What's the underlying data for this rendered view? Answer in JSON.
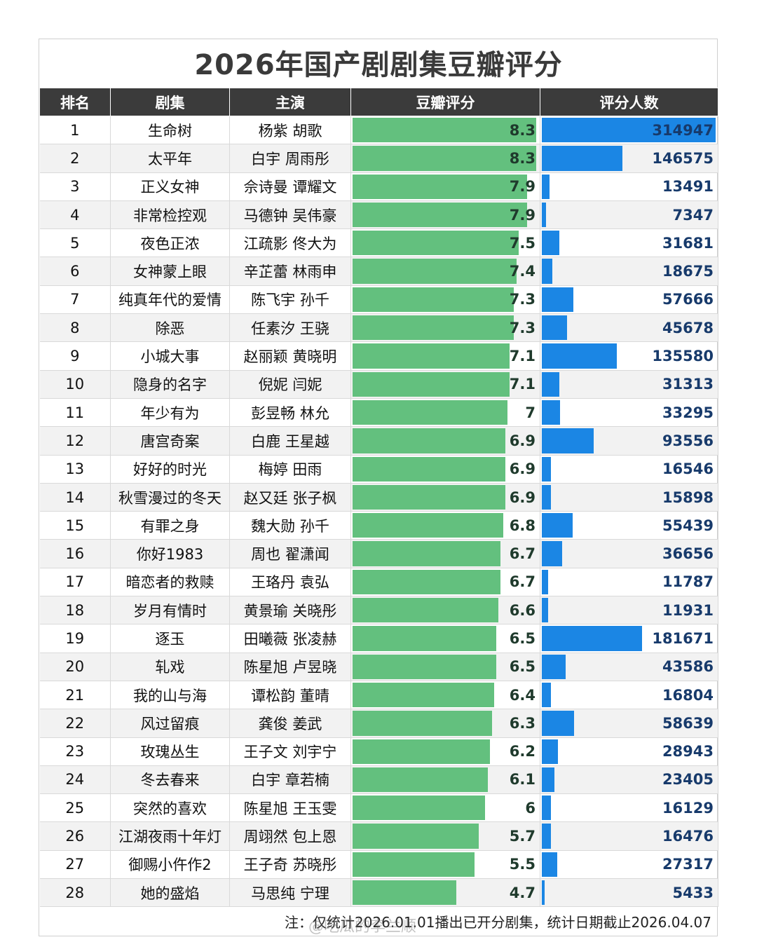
{
  "title": "2026年国产剧剧集豆瓣评分",
  "headers": [
    "排名",
    "剧集",
    "主演",
    "豆瓣评分",
    "评分人数"
  ],
  "note": "注：仅统计2026.01.01播出已开分剧集，统计日期截止2026.04.07",
  "watermark": "@吃瓜的李兰顺",
  "colors": {
    "score_bar": "#63c07e",
    "votes_bar": "#1b86e4",
    "header_bg": "#3b3b3b"
  },
  "chart_data": {
    "type": "table",
    "columns": [
      "排名",
      "剧集",
      "主演",
      "豆瓣评分",
      "评分人数"
    ],
    "rows": [
      {
        "rank": "1",
        "show": "生命树",
        "cast": "杨紫 胡歌",
        "score": 8.3,
        "votes": 314947
      },
      {
        "rank": "2",
        "show": "太平年",
        "cast": "白宇 周雨彤",
        "score": 8.3,
        "votes": 146575
      },
      {
        "rank": "3",
        "show": "正义女神",
        "cast": "佘诗曼 谭耀文",
        "score": 7.9,
        "votes": 13491
      },
      {
        "rank": "4",
        "show": "非常检控观",
        "cast": "马德钟 吴伟豪",
        "score": 7.9,
        "votes": 7347
      },
      {
        "rank": "5",
        "show": "夜色正浓",
        "cast": "江疏影 佟大为",
        "score": 7.5,
        "votes": 31681
      },
      {
        "rank": "6",
        "show": "女神蒙上眼",
        "cast": "辛芷蕾 林雨申",
        "score": 7.4,
        "votes": 18675
      },
      {
        "rank": "7",
        "show": "纯真年代的爱情",
        "cast": "陈飞宇 孙千",
        "score": 7.3,
        "votes": 57666
      },
      {
        "rank": "8",
        "show": "除恶",
        "cast": "任素汐 王骁",
        "score": 7.3,
        "votes": 45678
      },
      {
        "rank": "9",
        "show": "小城大事",
        "cast": "赵丽颖 黄晓明",
        "score": 7.1,
        "votes": 135580
      },
      {
        "rank": "10",
        "show": "隐身的名字",
        "cast": "倪妮 闫妮",
        "score": 7.1,
        "votes": 31313
      },
      {
        "rank": "11",
        "show": "年少有为",
        "cast": "彭昱畅 林允",
        "score": 7,
        "votes": 33295
      },
      {
        "rank": "12",
        "show": "唐宫奇案",
        "cast": "白鹿 王星越",
        "score": 6.9,
        "votes": 93556
      },
      {
        "rank": "13",
        "show": "好好的时光",
        "cast": "梅婷 田雨",
        "score": 6.9,
        "votes": 16546
      },
      {
        "rank": "14",
        "show": "秋雪漫过的冬天",
        "cast": "赵又廷 张子枫",
        "score": 6.9,
        "votes": 15898
      },
      {
        "rank": "15",
        "show": "有罪之身",
        "cast": "魏大勋 孙千",
        "score": 6.8,
        "votes": 55439
      },
      {
        "rank": "16",
        "show": "你好1983",
        "cast": "周也 翟潇闻",
        "score": 6.7,
        "votes": 36656
      },
      {
        "rank": "17",
        "show": "暗恋者的救赎",
        "cast": "王珞丹 袁弘",
        "score": 6.7,
        "votes": 11787
      },
      {
        "rank": "18",
        "show": "岁月有情时",
        "cast": "黄景瑜 关晓彤",
        "score": 6.6,
        "votes": 11931
      },
      {
        "rank": "19",
        "show": "逐玉",
        "cast": "田曦薇 张凌赫",
        "score": 6.5,
        "votes": 181671
      },
      {
        "rank": "20",
        "show": "轧戏",
        "cast": "陈星旭 卢昱晓",
        "score": 6.5,
        "votes": 43586
      },
      {
        "rank": "21",
        "show": "我的山与海",
        "cast": "谭松韵 董晴",
        "score": 6.4,
        "votes": 16804
      },
      {
        "rank": "22",
        "show": "风过留痕",
        "cast": "龚俊 姜武",
        "score": 6.3,
        "votes": 58639
      },
      {
        "rank": "23",
        "show": "玫瑰丛生",
        "cast": "王子文 刘宇宁",
        "score": 6.2,
        "votes": 28943
      },
      {
        "rank": "24",
        "show": "冬去春来",
        "cast": "白宇 章若楠",
        "score": 6.1,
        "votes": 23405
      },
      {
        "rank": "25",
        "show": "突然的喜欢",
        "cast": "陈星旭 王玉雯",
        "score": 6,
        "votes": 16129
      },
      {
        "rank": "26",
        "show": "江湖夜雨十年灯",
        "cast": "周翊然 包上恩",
        "score": 5.7,
        "votes": 16476
      },
      {
        "rank": "27",
        "show": "御赐小仵作2",
        "cast": "王子奇 苏晓彤",
        "score": 5.5,
        "votes": 27317
      },
      {
        "rank": "28",
        "show": "她的盛焰",
        "cast": "马思纯 宁理",
        "score": 4.7,
        "votes": 5433
      }
    ],
    "score_max": 8.3,
    "votes_max": 314947
  }
}
